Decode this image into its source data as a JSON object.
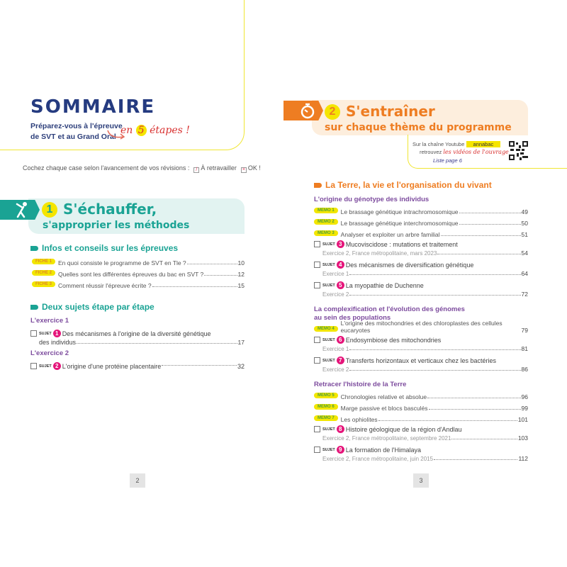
{
  "left": {
    "title": "SOMMAIRE",
    "subtitle_line1": "Préparez-vous à l'épreuve",
    "subtitle_line2": "de SVT et au Grand Oral",
    "etapes_pre": "en ",
    "etapes_num": "5",
    "etapes_post": " étapes !",
    "cochez": "Cochez chaque case selon l'avancement de vos révisions :",
    "legend_retravailler": "À retravailler",
    "legend_ok": "OK !",
    "step": {
      "number": "1",
      "title": "S'échauffer,",
      "subtitle": "s'approprier les méthodes",
      "icon": "stretching-person-icon",
      "color": "#1aa394",
      "bg": "#e2f3f1"
    },
    "section1": {
      "title": "Infos et conseils sur les épreuves",
      "items": [
        {
          "label": "FICHE 1",
          "text": "En quoi consiste le programme de SVT en Tle ?",
          "page": "10"
        },
        {
          "label": "FICHE 2",
          "text": "Quelles sont les différentes épreuves du bac en SVT ?",
          "page": "12"
        },
        {
          "label": "FICHE 3",
          "text": "Comment réussir l'épreuve écrite ?",
          "page": "15"
        }
      ]
    },
    "section2": {
      "title": "Deux sujets étape par étape",
      "groups": [
        {
          "title": "L'exercice 1",
          "items": [
            {
              "num": "1",
              "title": "Des mécanismes à l'origine de la diversité génétique",
              "sub": "des individus",
              "page": "17"
            }
          ]
        },
        {
          "title": "L'exercice 2",
          "items": [
            {
              "num": "2",
              "title": "L'origine d'une protéine placentaire",
              "page": "32"
            }
          ]
        }
      ]
    },
    "page_number": "2"
  },
  "right": {
    "step": {
      "number": "2",
      "title": "S'entraîner",
      "subtitle": "sur chaque thème du programme",
      "icon": "stopwatch-icon",
      "color": "#ee7d22",
      "bg": "#fdeedd"
    },
    "youtube": {
      "line1": "Sur la chaîne Youtube",
      "channel": "annabac",
      "line2_pre": "retrouvez",
      "line2_link": "les vidéos de l'ouvrage",
      "liste": "Liste page 6"
    },
    "section": {
      "title": "La Terre, la vie et l'organisation du vivant"
    },
    "groups": [
      {
        "title": "L'origine du génotype des individus",
        "items": [
          {
            "label": "MEMO 1",
            "text": "Le brassage génétique intrachromosomique",
            "page": "49"
          },
          {
            "label": "MEMO 2",
            "text": "Le brassage génétique interchromosomique",
            "page": "50"
          },
          {
            "label": "MEMO 3",
            "text": "Analyser et exploiter un arbre familial",
            "page": "51"
          },
          {
            "num": "3",
            "title": "Mucoviscidose : mutations et traitement",
            "sub": "Exercice 2, France métropolitaine, mars 2023",
            "page": "54"
          },
          {
            "num": "4",
            "title": "Des mécanismes de diversification génétique",
            "sub": "Exercice 1",
            "page": "64"
          },
          {
            "num": "5",
            "title": "La myopathie de Duchenne",
            "sub": "Exercice 2",
            "page": "72"
          }
        ]
      },
      {
        "title": "La complexification et l'évolution des génomes",
        "title2": "au sein des populations",
        "items": [
          {
            "label": "MEMO 4",
            "text": "L'origine des mitochondries et des chloroplastes des cellules eucaryotes",
            "page": "79"
          },
          {
            "num": "6",
            "title": "Endosymbiose des mitochondries",
            "sub": "Exercice 1",
            "page": "81"
          },
          {
            "num": "7",
            "title": "Transferts horizontaux et verticaux chez les bactéries",
            "sub": "Exercice 2",
            "page": "86"
          }
        ]
      },
      {
        "title": "Retracer l'histoire de la Terre",
        "items": [
          {
            "label": "MEMO 5",
            "text": "Chronologies relative et absolue",
            "page": "96"
          },
          {
            "label": "MEMO 6",
            "text": "Marge passive et blocs basculés",
            "page": "99"
          },
          {
            "label": "MEMO 7",
            "text": "Les ophiolites",
            "page": "101"
          },
          {
            "num": "8",
            "title": "Histoire géologique de la région d'Andlau",
            "sub": "Exercice 2, France métropolitaine, septembre 2021",
            "page": "103"
          },
          {
            "num": "9",
            "title": "La formation de l'Himalaya",
            "sub": "Exercice 2, France métropolitaine, juin 2015",
            "page": "112"
          }
        ]
      }
    ],
    "sujet_label": "SUJET",
    "page_number": "3"
  }
}
